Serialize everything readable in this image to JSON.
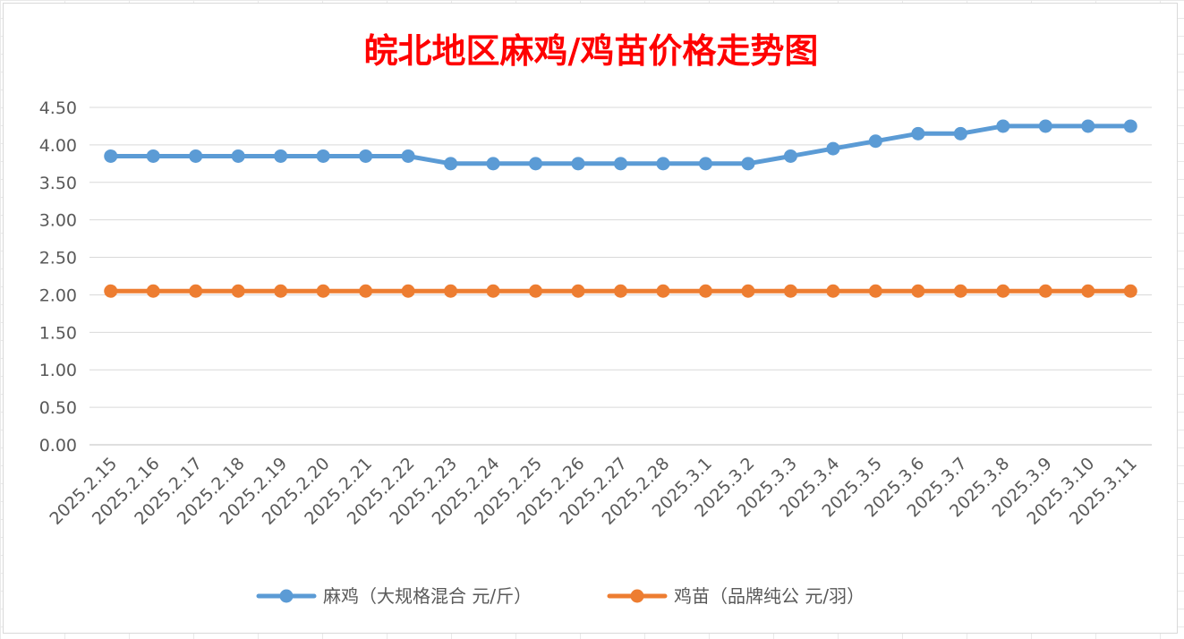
{
  "chart_data": {
    "type": "line",
    "title": "皖北地区麻鸡/鸡苗价格走势图",
    "categories": [
      "2025.2.15",
      "2025.2.16",
      "2025.2.17",
      "2025.2.18",
      "2025.2.19",
      "2025.2.20",
      "2025.2.21",
      "2025.2.22",
      "2025.2.23",
      "2025.2.24",
      "2025.2.25",
      "2025.2.26",
      "2025.2.27",
      "2025.2.28",
      "2025.3.1",
      "2025.3.2",
      "2025.3.3",
      "2025.3.4",
      "2025.3.5",
      "2025.3.6",
      "2025.3.7",
      "2025.3.8",
      "2025.3.9",
      "2025.3.10",
      "2025.3.11"
    ],
    "series": [
      {
        "name": "麻鸡（大规格混合 元/斤）",
        "color": "#5b9bd5",
        "values": [
          3.85,
          3.85,
          3.85,
          3.85,
          3.85,
          3.85,
          3.85,
          3.85,
          3.75,
          3.75,
          3.75,
          3.75,
          3.75,
          3.75,
          3.75,
          3.75,
          3.85,
          3.95,
          4.05,
          4.15,
          4.15,
          4.25,
          4.25,
          4.25,
          4.25
        ]
      },
      {
        "name": "鸡苗（品牌纯公 元/羽）",
        "color": "#ed7d31",
        "values": [
          2.05,
          2.05,
          2.05,
          2.05,
          2.05,
          2.05,
          2.05,
          2.05,
          2.05,
          2.05,
          2.05,
          2.05,
          2.05,
          2.05,
          2.05,
          2.05,
          2.05,
          2.05,
          2.05,
          2.05,
          2.05,
          2.05,
          2.05,
          2.05,
          2.05
        ]
      }
    ],
    "ylim": [
      0,
      4.5
    ],
    "yticks": [
      "0.00",
      "0.50",
      "1.00",
      "1.50",
      "2.00",
      "2.50",
      "3.00",
      "3.50",
      "4.00",
      "4.50"
    ],
    "xlabel": "",
    "ylabel": "",
    "grid": true,
    "legend_position": "bottom"
  }
}
